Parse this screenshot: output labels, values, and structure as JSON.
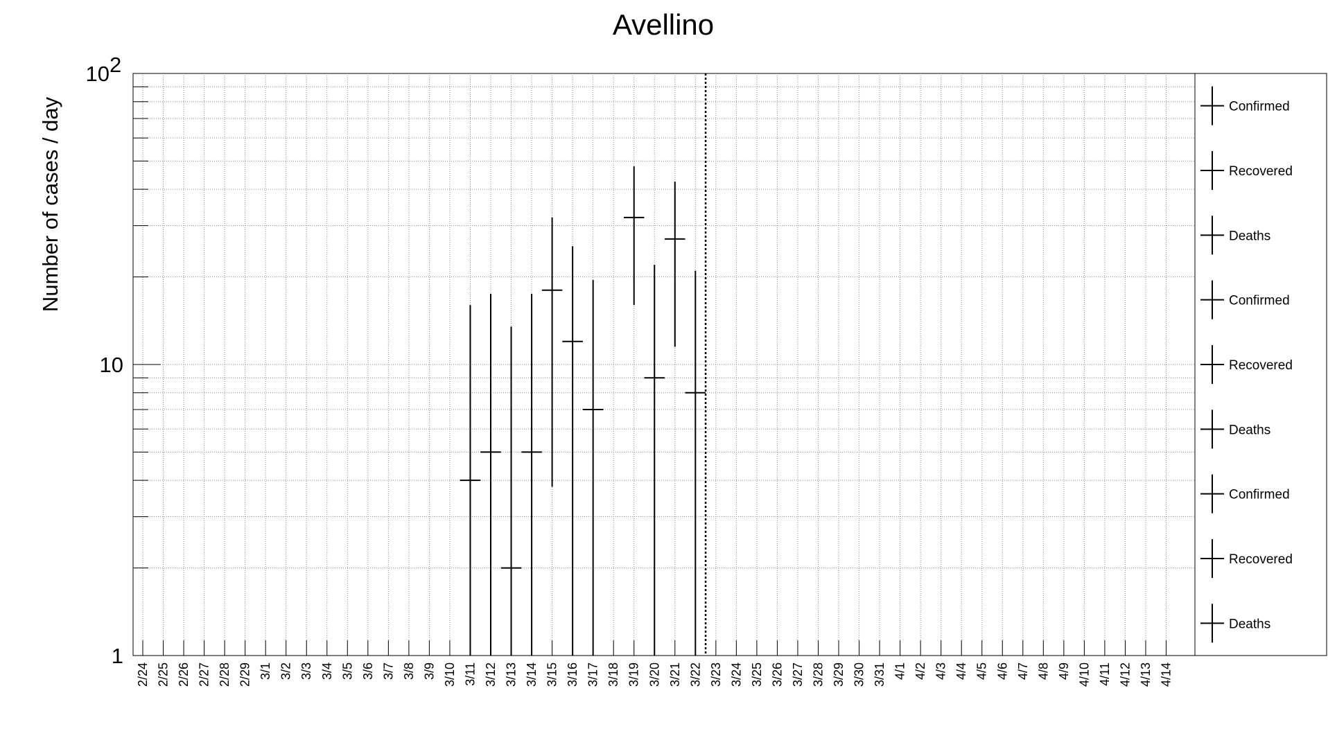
{
  "chart_data": {
    "type": "scatter",
    "title": "Avellino",
    "ylabel": "Number of cases / day",
    "xlabel": "",
    "yscale": "log",
    "ylim": [
      1,
      100
    ],
    "ytick_labels": [
      {
        "value": 1,
        "base": "1",
        "exp": ""
      },
      {
        "value": 10,
        "base": "10",
        "exp": ""
      },
      {
        "value": 100,
        "base": "10",
        "exp": "2"
      }
    ],
    "grid": true,
    "legend_position": "right",
    "categories": [
      "2/24",
      "2/25",
      "2/26",
      "2/27",
      "2/28",
      "2/29",
      "3/1",
      "3/2",
      "3/3",
      "3/4",
      "3/5",
      "3/6",
      "3/7",
      "3/8",
      "3/9",
      "3/10",
      "3/11",
      "3/12",
      "3/13",
      "3/14",
      "3/15",
      "3/16",
      "3/17",
      "3/18",
      "3/19",
      "3/20",
      "3/21",
      "3/22",
      "3/23",
      "3/24",
      "3/25",
      "3/26",
      "3/27",
      "3/28",
      "3/29",
      "3/30",
      "3/31",
      "4/1",
      "4/2",
      "4/3",
      "4/4",
      "4/5",
      "4/6",
      "4/7",
      "4/8",
      "4/9",
      "4/10",
      "4/11",
      "4/12",
      "4/13",
      "4/14"
    ],
    "marker_date": "3/22",
    "points": [
      {
        "x": "3/11",
        "y": 4,
        "y_low": 1,
        "y_high": 16
      },
      {
        "x": "3/12",
        "y": 5,
        "y_low": 1,
        "y_high": 17.5
      },
      {
        "x": "3/13",
        "y": 2,
        "y_low": 1,
        "y_high": 13.5
      },
      {
        "x": "3/14",
        "y": 5,
        "y_low": 1,
        "y_high": 17.5
      },
      {
        "x": "3/15",
        "y": 18,
        "y_low": 3.8,
        "y_high": 32
      },
      {
        "x": "3/16",
        "y": 12,
        "y_low": 1,
        "y_high": 25.5
      },
      {
        "x": "3/17",
        "y": 7,
        "y_low": 1,
        "y_high": 19.5
      },
      {
        "x": "3/19",
        "y": 32,
        "y_low": 16,
        "y_high": 48
      },
      {
        "x": "3/20",
        "y": 9,
        "y_low": 1,
        "y_high": 22
      },
      {
        "x": "3/21",
        "y": 27,
        "y_low": 11.5,
        "y_high": 42.5
      },
      {
        "x": "3/22",
        "y": 8,
        "y_low": 1,
        "y_high": 21
      }
    ],
    "legend": [
      "Confirmed",
      "Recovered",
      "Deaths",
      "Confirmed",
      "Recovered",
      "Deaths",
      "Confirmed",
      "Recovered",
      "Deaths"
    ]
  }
}
